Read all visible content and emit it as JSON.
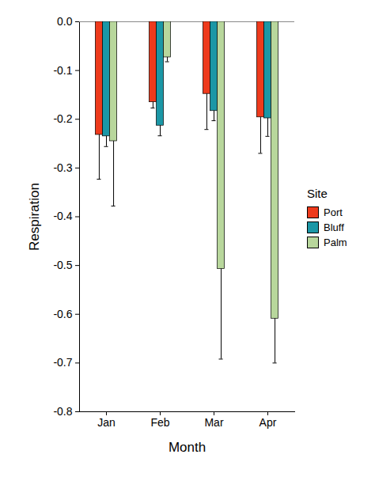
{
  "chart_data": {
    "type": "bar",
    "x_label": "Month",
    "y_label": "Respiration",
    "legend_title": "Site",
    "legend": "right",
    "categories": [
      "Jan",
      "Feb",
      "Mar",
      "Apr"
    ],
    "series": [
      {
        "name": "Port",
        "color": "#EE3A1C",
        "values": [
          -0.232,
          -0.165,
          -0.148,
          -0.196
        ],
        "errors": [
          0.091,
          0.012,
          0.073,
          0.074
        ]
      },
      {
        "name": "Bluff",
        "color": "#1B97A6",
        "values": [
          -0.235,
          -0.213,
          -0.183,
          -0.198
        ],
        "errors": [
          0.021,
          0.021,
          0.02,
          0.037
        ]
      },
      {
        "name": "Palm",
        "color": "#B8D79C",
        "values": [
          -0.245,
          -0.073,
          -0.507,
          -0.609
        ],
        "errors": [
          0.133,
          0.009,
          0.185,
          0.091
        ]
      }
    ],
    "ylim": [
      -0.8,
      0
    ],
    "yticks": [
      -0.8,
      -0.7,
      -0.6,
      -0.5,
      -0.4,
      -0.3,
      -0.2,
      -0.1,
      {
        "value": 0,
        "label": "0.0"
      }
    ]
  }
}
